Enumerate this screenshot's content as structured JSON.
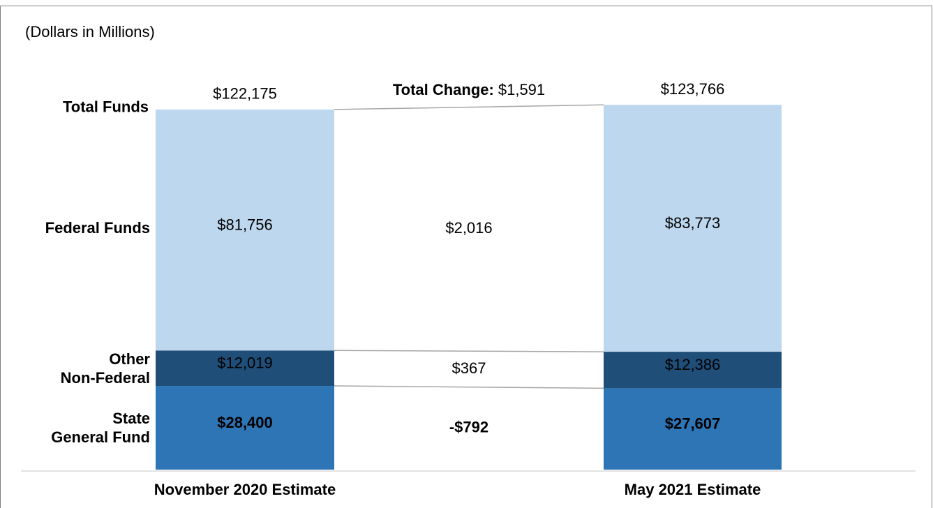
{
  "chart_data": {
    "type": "stacked-bar-change",
    "subtitle": "(Dollars in Millions)",
    "total_label": "Total Funds",
    "categories": [
      "November 2020 Estimate",
      "May 2021 Estimate"
    ],
    "series": [
      {
        "name": "State General Fund",
        "color": "#2e75b6",
        "label_color": "#ffffff",
        "bold": true,
        "values": [
          28400,
          27607
        ],
        "value_labels": [
          "$28,400",
          "$27,607"
        ]
      },
      {
        "name": "Other Non-Federal",
        "color": "#1f4e79",
        "label_color": "#ffffff",
        "bold": false,
        "values": [
          12019,
          12386
        ],
        "value_labels": [
          "$12,019",
          "$12,386"
        ]
      },
      {
        "name": "Federal Funds",
        "color": "#bdd7ee",
        "label_color": "#404040",
        "bold": false,
        "values": [
          81756,
          83773
        ],
        "value_labels": [
          "$81,756",
          "$83,773"
        ]
      }
    ],
    "totals": {
      "values": [
        122175,
        123766
      ],
      "value_labels": [
        "$122,175",
        "$123,766"
      ]
    },
    "changes": {
      "values": [
        -792,
        367,
        2016
      ],
      "value_labels": [
        "-$792",
        "$367",
        "$2,016"
      ]
    },
    "total_change": {
      "label": "Total Change:",
      "value": 1591,
      "value_label": "$1,591"
    },
    "ylim": [
      0,
      125000
    ]
  }
}
